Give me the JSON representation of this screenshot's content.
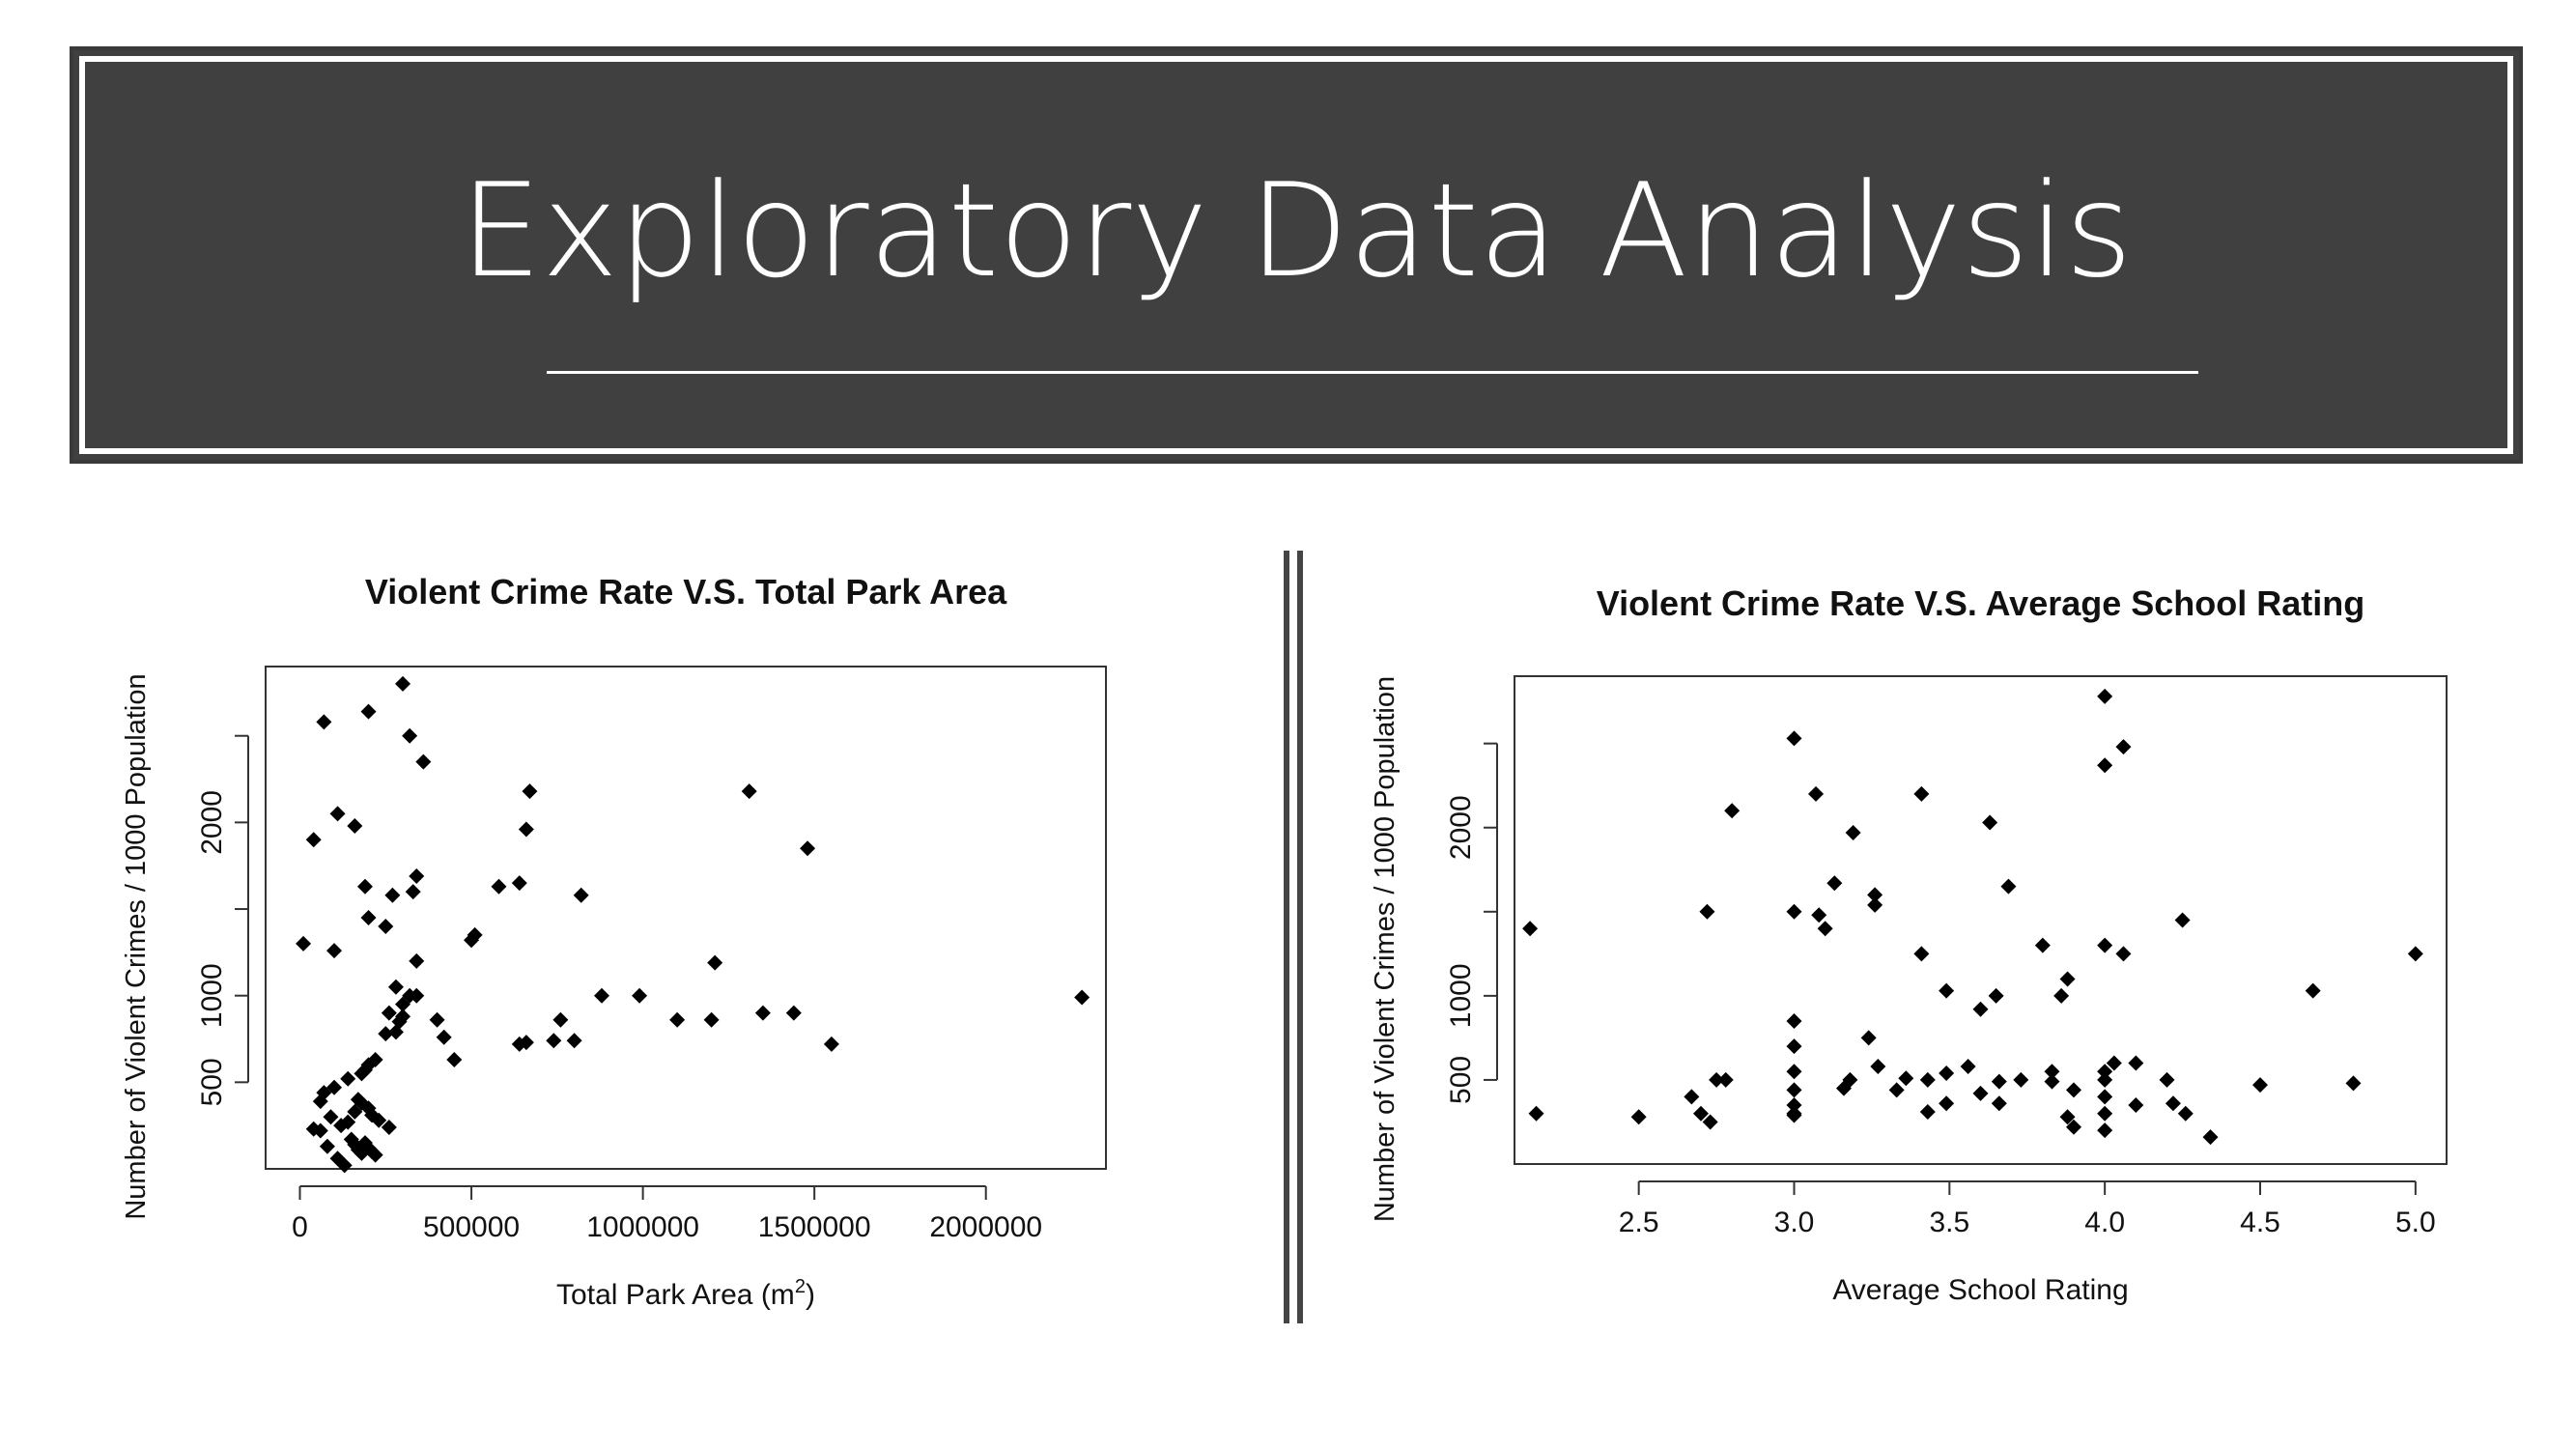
{
  "slide": {
    "title": "Exploratory Data Analysis"
  },
  "colors": {
    "banner_bg": "#404040",
    "banner_text": "#ffffff",
    "points": "#000000"
  },
  "chart_data": [
    {
      "type": "scatter",
      "title": "Violent Crime Rate V.S. Total Park Area",
      "xlabel": "Total Park Area (m",
      "xlabel_sup": "2",
      "xlabel_tail": ")",
      "ylabel": "Number of Violent Crimes / 1000 Population",
      "xlim": [
        -100000,
        2350000
      ],
      "ylim": [
        0,
        2900
      ],
      "xticks": [
        0,
        500000,
        1000000,
        1500000,
        2000000
      ],
      "xtick_labels": [
        "0",
        "500000",
        "1000000",
        "1500000",
        "2000000"
      ],
      "yticks": [
        500,
        1000,
        1500,
        2000,
        2500
      ],
      "ytick_labels": [
        "500",
        "1000",
        "",
        "2000",
        ""
      ],
      "grid": false,
      "points": [
        [
          10000,
          1300
        ],
        [
          40000,
          230
        ],
        [
          60000,
          220
        ],
        [
          80000,
          130
        ],
        [
          110000,
          60
        ],
        [
          130000,
          20
        ],
        [
          150000,
          170
        ],
        [
          160000,
          140
        ],
        [
          170000,
          110
        ],
        [
          180000,
          90
        ],
        [
          190000,
          150
        ],
        [
          200000,
          120
        ],
        [
          210000,
          100
        ],
        [
          220000,
          80
        ],
        [
          120000,
          250
        ],
        [
          90000,
          300
        ],
        [
          140000,
          270
        ],
        [
          160000,
          330
        ],
        [
          170000,
          400
        ],
        [
          180000,
          380
        ],
        [
          200000,
          350
        ],
        [
          210000,
          310
        ],
        [
          230000,
          280
        ],
        [
          260000,
          240
        ],
        [
          60000,
          390
        ],
        [
          70000,
          440
        ],
        [
          100000,
          470
        ],
        [
          140000,
          520
        ],
        [
          180000,
          550
        ],
        [
          190000,
          570
        ],
        [
          200000,
          600
        ],
        [
          220000,
          630
        ],
        [
          250000,
          780
        ],
        [
          280000,
          790
        ],
        [
          290000,
          850
        ],
        [
          300000,
          880
        ],
        [
          260000,
          900
        ],
        [
          300000,
          950
        ],
        [
          100000,
          1260
        ],
        [
          250000,
          1400
        ],
        [
          40000,
          1900
        ],
        [
          70000,
          2580
        ],
        [
          110000,
          2050
        ],
        [
          160000,
          1980
        ],
        [
          190000,
          1630
        ],
        [
          200000,
          1450
        ],
        [
          330000,
          1600
        ],
        [
          340000,
          1690
        ],
        [
          340000,
          1200
        ],
        [
          270000,
          1580
        ],
        [
          320000,
          1000
        ],
        [
          280000,
          1050
        ],
        [
          340000,
          1000
        ],
        [
          400000,
          860
        ],
        [
          420000,
          760
        ],
        [
          450000,
          630
        ],
        [
          500000,
          1320
        ],
        [
          510000,
          1350
        ],
        [
          580000,
          1630
        ],
        [
          640000,
          1650
        ],
        [
          660000,
          1960
        ],
        [
          670000,
          2180
        ],
        [
          660000,
          730
        ],
        [
          640000,
          720
        ],
        [
          740000,
          740
        ],
        [
          760000,
          860
        ],
        [
          800000,
          740
        ],
        [
          820000,
          1580
        ],
        [
          880000,
          1000
        ],
        [
          990000,
          1000
        ],
        [
          1100000,
          860
        ],
        [
          1200000,
          860
        ],
        [
          1210000,
          1190
        ],
        [
          1310000,
          2180
        ],
        [
          1350000,
          900
        ],
        [
          1440000,
          900
        ],
        [
          1480000,
          1850
        ],
        [
          1550000,
          720
        ],
        [
          2280000,
          990
        ],
        [
          200000,
          2640
        ],
        [
          300000,
          2800
        ],
        [
          320000,
          2500
        ],
        [
          360000,
          2350
        ]
      ]
    },
    {
      "type": "scatter",
      "title": "Violent Crime Rate V.S. Average School Rating",
      "xlabel": "Average School Rating",
      "ylabel": "Number of Violent Crimes / 1000 Population",
      "xlim": [
        2.1,
        5.1
      ],
      "ylim": [
        0,
        2900
      ],
      "xticks": [
        2.5,
        3.0,
        3.5,
        4.0,
        4.5,
        5.0
      ],
      "xtick_labels": [
        "2.5",
        "3.0",
        "3.5",
        "4.0",
        "4.5",
        "5.0"
      ],
      "yticks": [
        500,
        1000,
        1500,
        2000,
        2500
      ],
      "ytick_labels": [
        "500",
        "1000",
        "",
        "2000",
        ""
      ],
      "grid": false,
      "points": [
        [
          2.15,
          1400
        ],
        [
          2.17,
          300
        ],
        [
          2.5,
          280
        ],
        [
          2.67,
          400
        ],
        [
          2.7,
          300
        ],
        [
          2.72,
          1500
        ],
        [
          2.73,
          250
        ],
        [
          2.75,
          500
        ],
        [
          2.78,
          500
        ],
        [
          2.8,
          2100
        ],
        [
          3.0,
          300
        ],
        [
          3.0,
          290
        ],
        [
          3.0,
          350
        ],
        [
          3.0,
          440
        ],
        [
          3.0,
          550
        ],
        [
          3.0,
          700
        ],
        [
          3.0,
          850
        ],
        [
          3.0,
          1500
        ],
        [
          3.0,
          2530
        ],
        [
          3.07,
          2200
        ],
        [
          3.08,
          1480
        ],
        [
          3.1,
          1400
        ],
        [
          3.13,
          1670
        ],
        [
          3.16,
          450
        ],
        [
          3.18,
          500
        ],
        [
          3.19,
          1970
        ],
        [
          3.24,
          750
        ],
        [
          3.26,
          1540
        ],
        [
          3.26,
          1600
        ],
        [
          3.27,
          580
        ],
        [
          3.33,
          440
        ],
        [
          3.36,
          510
        ],
        [
          3.41,
          2200
        ],
        [
          3.41,
          1250
        ],
        [
          3.43,
          500
        ],
        [
          3.43,
          310
        ],
        [
          3.49,
          1030
        ],
        [
          3.49,
          540
        ],
        [
          3.49,
          360
        ],
        [
          3.56,
          580
        ],
        [
          3.6,
          920
        ],
        [
          3.6,
          420
        ],
        [
          3.63,
          2030
        ],
        [
          3.65,
          1000
        ],
        [
          3.66,
          360
        ],
        [
          3.66,
          490
        ],
        [
          3.69,
          1650
        ],
        [
          3.73,
          500
        ],
        [
          3.8,
          1300
        ],
        [
          3.83,
          490
        ],
        [
          3.83,
          550
        ],
        [
          3.86,
          1000
        ],
        [
          3.88,
          1100
        ],
        [
          3.88,
          280
        ],
        [
          3.9,
          440
        ],
        [
          3.9,
          220
        ],
        [
          4.0,
          200
        ],
        [
          4.0,
          300
        ],
        [
          4.0,
          400
        ],
        [
          4.0,
          500
        ],
        [
          4.0,
          550
        ],
        [
          4.0,
          1300
        ],
        [
          4.0,
          2370
        ],
        [
          4.0,
          2780
        ],
        [
          4.03,
          600
        ],
        [
          4.06,
          2480
        ],
        [
          4.06,
          1250
        ],
        [
          4.1,
          600
        ],
        [
          4.1,
          350
        ],
        [
          4.2,
          500
        ],
        [
          4.22,
          360
        ],
        [
          4.25,
          1450
        ],
        [
          4.26,
          300
        ],
        [
          4.34,
          160
        ],
        [
          4.5,
          470
        ],
        [
          4.67,
          1030
        ],
        [
          4.8,
          480
        ],
        [
          5.0,
          1250
        ]
      ]
    }
  ]
}
